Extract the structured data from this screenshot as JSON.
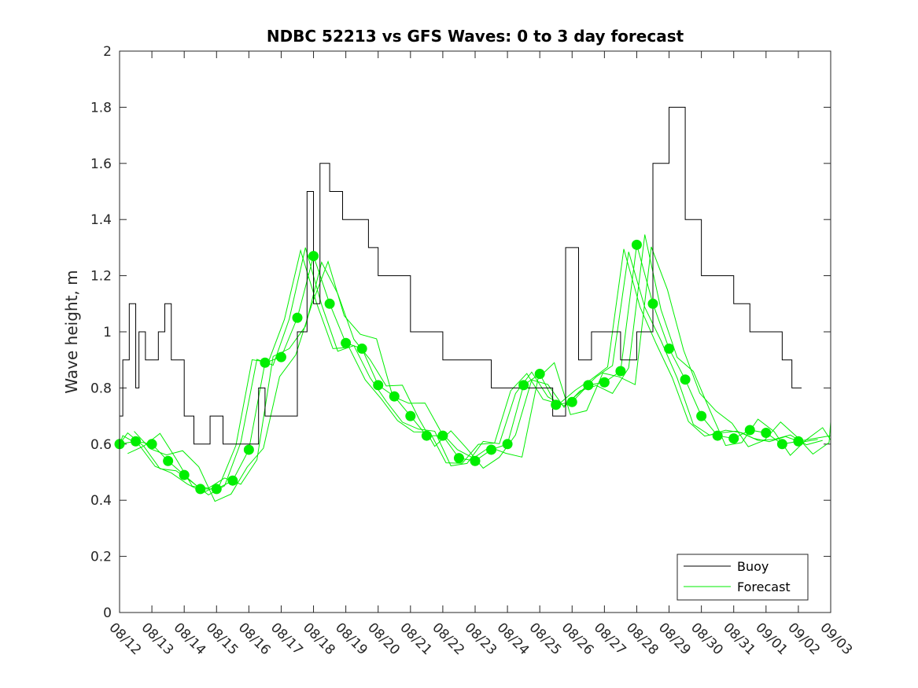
{
  "chart_data": {
    "type": "line",
    "title": "NDBC 52213 vs GFS Waves: 0 to 3 day forecast",
    "xlabel": "",
    "ylabel": "Wave height, m",
    "ylim": [
      0,
      2
    ],
    "yticks": [
      "0",
      "0.2",
      "0.4",
      "0.6",
      "0.8",
      "1",
      "1.2",
      "1.4",
      "1.6",
      "1.8",
      "2"
    ],
    "xlim_days": [
      0,
      22
    ],
    "xtick_labels": [
      "08/12",
      "08/13",
      "08/14",
      "08/15",
      "08/16",
      "08/17",
      "08/18",
      "08/19",
      "08/20",
      "08/21",
      "08/22",
      "08/23",
      "08/24",
      "08/25",
      "08/26",
      "08/27",
      "08/28",
      "08/29",
      "08/30",
      "08/31",
      "09/01",
      "09/02",
      "09/03"
    ],
    "legend": {
      "placement": "bottom-right",
      "entries": [
        "Buoy",
        "Forecast"
      ]
    },
    "colors": {
      "buoy": "#000000",
      "forecast": "#00ee00"
    },
    "series": [
      {
        "name": "Buoy",
        "style": "stairs",
        "x": [
          0,
          0.1,
          0.3,
          0.5,
          0.6,
          0.8,
          1.2,
          1.4,
          1.6,
          2.0,
          2.3,
          2.8,
          3.2,
          3.5,
          4.3,
          4.5,
          5.0,
          5.3,
          5.5,
          5.8,
          6.0,
          6.2,
          6.5,
          6.9,
          7.3,
          7.7,
          8.0,
          8.5,
          9.0,
          9.5,
          10.0,
          10.5,
          11.0,
          11.5,
          12.0,
          12.5,
          13.0,
          13.4,
          13.8,
          14.2,
          14.6,
          15.0,
          15.5,
          16.0,
          16.5,
          17.0,
          17.5,
          18.0,
          18.5,
          19.0,
          19.5,
          20.0,
          20.5,
          20.8,
          21.0
        ],
        "y": [
          0.7,
          0.9,
          1.1,
          0.8,
          1.0,
          0.9,
          1.0,
          1.1,
          0.9,
          0.7,
          0.6,
          0.7,
          0.6,
          0.6,
          0.8,
          0.7,
          0.7,
          0.7,
          1.0,
          1.5,
          1.1,
          1.6,
          1.5,
          1.4,
          1.4,
          1.3,
          1.2,
          1.2,
          1.0,
          1.0,
          0.9,
          0.9,
          0.9,
          0.8,
          0.8,
          0.8,
          0.8,
          0.7,
          1.3,
          0.9,
          1.0,
          1.0,
          0.9,
          1.0,
          1.6,
          1.8,
          1.4,
          1.2,
          1.2,
          1.1,
          1.0,
          1.0,
          0.9,
          0.8,
          0.8
        ]
      },
      {
        "name": "Forecast",
        "markers": true,
        "x": [
          0,
          0.5,
          1.0,
          1.5,
          2.0,
          2.5,
          3.0,
          3.5,
          4.0,
          4.5,
          5.0,
          5.5,
          6.0,
          6.5,
          7.0,
          7.5,
          8.0,
          8.5,
          9.0,
          9.5,
          10.0,
          10.5,
          11.0,
          11.5,
          12.0,
          12.5,
          13.0,
          13.5,
          14.0,
          14.5,
          15.0,
          15.5,
          16.0,
          16.5,
          17.0,
          17.5,
          18.0,
          18.5,
          19.0,
          19.5,
          20.0,
          20.5,
          21.0,
          21.5,
          22.0
        ],
        "y": [
          0.6,
          0.61,
          0.6,
          0.54,
          0.49,
          0.44,
          0.44,
          0.47,
          0.58,
          0.89,
          0.91,
          1.05,
          1.27,
          1.1,
          0.96,
          0.94,
          0.81,
          0.77,
          0.7,
          0.63,
          0.63,
          0.55,
          0.54,
          0.58,
          0.6,
          0.81,
          0.85,
          0.74,
          0.75,
          0.81,
          0.82,
          0.86,
          1.31,
          1.1,
          0.94,
          0.83,
          0.7,
          0.63,
          0.62,
          0.65,
          0.64,
          0.6,
          0.61,
          0.62,
          0.63
        ]
      }
    ]
  }
}
